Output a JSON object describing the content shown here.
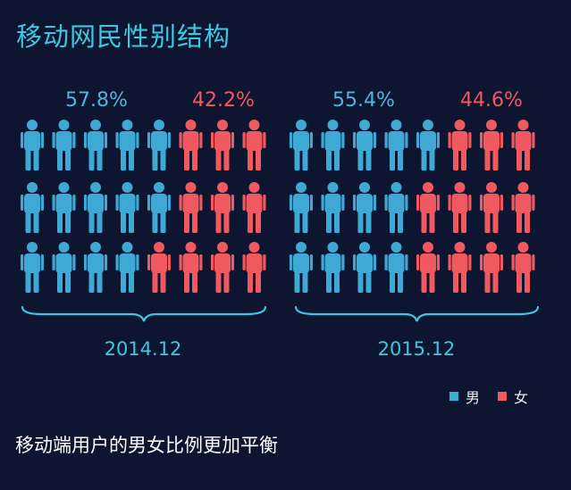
{
  "title": "移动网民性别结构",
  "footnote": "移动端用户的男女比例更加平衡",
  "colors": {
    "male": "#3fa9d6",
    "female": "#f0595f",
    "accent": "#3ec7e0",
    "background": "#0d1530"
  },
  "chart_data": {
    "type": "pictogram",
    "categories": [
      "2014.12",
      "2015.12"
    ],
    "series": [
      {
        "name": "男",
        "color": "#3fa9d6",
        "values": [
          57.8,
          55.4
        ]
      },
      {
        "name": "女",
        "color": "#f0595f",
        "values": [
          42.2,
          44.6
        ]
      }
    ],
    "value_labels": {
      "male": [
        "57.8%",
        "55.4%"
      ],
      "female": [
        "42.2%",
        "44.6%"
      ]
    },
    "legend": {
      "placement": "bottom-right",
      "entries": [
        "男",
        "女"
      ]
    }
  }
}
